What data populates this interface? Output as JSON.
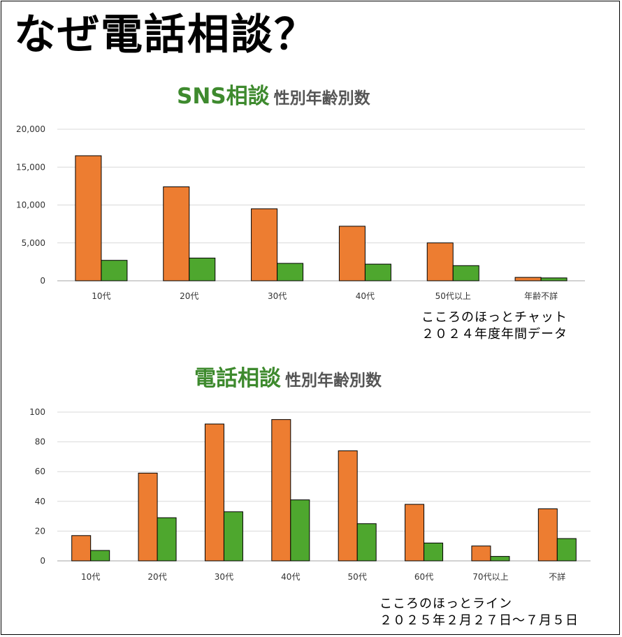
{
  "title": "なぜ電話相談？",
  "charts": [
    {
      "title_main": "SNS相談",
      "title_sub": "性別年齢別数",
      "source_line1": "こころのほっとチャット",
      "source_line2": "２０２４年度年間データ"
    },
    {
      "title_main": "電話相談",
      "title_sub": "性別年齢別数",
      "source_line1": "こころのほっとライン",
      "source_line2": "２０２５年２月２７日～７月５日"
    }
  ],
  "colors": {
    "series_1": "#ed7d31",
    "series_2": "#4ea72e",
    "title_green": "#3e8a2e",
    "grid": "#d9d9d9"
  },
  "chart_data": [
    {
      "type": "bar",
      "categories": [
        "10代",
        "20代",
        "30代",
        "40代",
        "50代以上",
        "年齢不詳"
      ],
      "series": [
        {
          "values": [
            16500,
            12400,
            9500,
            7200,
            5000,
            450
          ]
        },
        {
          "values": [
            2700,
            3000,
            2300,
            2200,
            2000,
            380
          ]
        }
      ],
      "yticks": [
        "0",
        "5,000",
        "10,000",
        "15,000",
        "20,000"
      ],
      "ylim": [
        0,
        20000
      ],
      "grid": true,
      "legend": "none"
    },
    {
      "type": "bar",
      "categories": [
        "10代",
        "20代",
        "30代",
        "40代",
        "50代",
        "60代",
        "70代以上",
        "不詳"
      ],
      "series": [
        {
          "values": [
            17,
            59,
            92,
            95,
            74,
            38,
            10,
            35
          ]
        },
        {
          "values": [
            7,
            29,
            33,
            41,
            25,
            12,
            3,
            15
          ]
        }
      ],
      "yticks": [
        "0",
        "20",
        "40",
        "60",
        "80",
        "100"
      ],
      "ylim": [
        0,
        100
      ],
      "grid": true,
      "legend": "none"
    }
  ]
}
